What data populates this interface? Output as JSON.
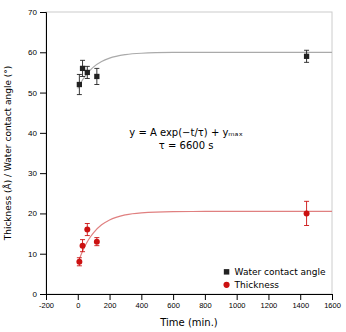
{
  "chart_data": {
    "type": "scatter",
    "xlabel": "Time (min.)",
    "ylabel": "Thickness (Å) / Water contact angle (°)",
    "xlim": [
      -200,
      1600
    ],
    "ylim": [
      0,
      70
    ],
    "xticks": [
      -200,
      0,
      200,
      400,
      600,
      800,
      1000,
      1200,
      1400,
      1600
    ],
    "yticks": [
      0,
      10,
      20,
      30,
      40,
      50,
      60,
      70
    ],
    "annotations": [
      "y = A exp(−t/τ) + yₘₐₓ",
      "τ = 6600 s"
    ],
    "legend": "lower right",
    "series": [
      {
        "name": "Water contact angle",
        "type": "scatter",
        "marker": "square",
        "color": "#222222",
        "x": [
          10,
          30,
          60,
          120,
          1440
        ],
        "values": [
          52,
          56,
          55,
          54,
          59
        ],
        "errors": [
          2.5,
          2.0,
          1.5,
          2.0,
          1.5
        ]
      },
      {
        "name": "Thickness",
        "type": "scatter",
        "marker": "circle",
        "color": "#cc1111",
        "x": [
          10,
          30,
          60,
          120,
          1440
        ],
        "values": [
          8,
          12,
          16,
          13,
          20
        ],
        "errors": [
          1.0,
          1.5,
          1.5,
          1.0,
          3.0
        ]
      },
      {
        "type": "line",
        "color": "#aaaaaa",
        "x": [
          0,
          20,
          40,
          60,
          80,
          100,
          150,
          200,
          300,
          400,
          600,
          800,
          1000,
          1600
        ],
        "values": [
          51,
          52.496,
          53.744,
          54.784,
          55.651,
          56.374,
          57.698,
          58.539,
          59.411,
          59.763,
          59.962,
          59.994,
          59.999,
          60
        ]
      },
      {
        "type": "line",
        "color": "#e08080",
        "x": [
          0,
          20,
          40,
          60,
          80,
          100,
          150,
          200,
          300,
          400,
          600,
          800,
          1000,
          1600
        ],
        "values": [
          7.5,
          9.661,
          11.463,
          12.965,
          14.218,
          15.262,
          17.176,
          18.39,
          19.65,
          20.157,
          20.444,
          20.491,
          20.499,
          20.5
        ]
      }
    ]
  }
}
